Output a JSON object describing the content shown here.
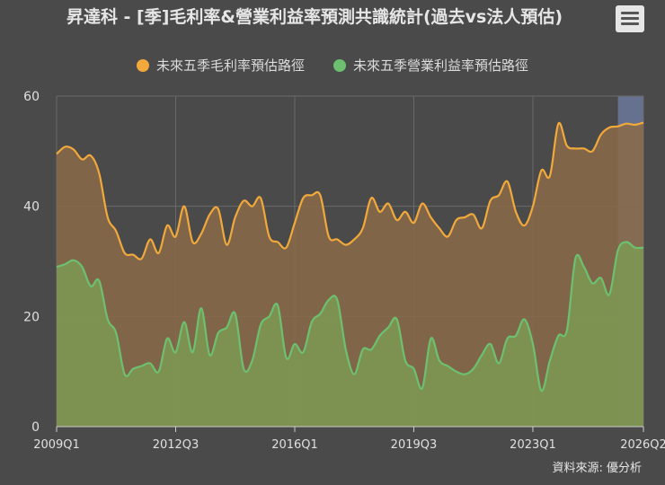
{
  "title": "昇達科 - [季]毛利率&營業利益率預測共識統計(過去vs法人預估)",
  "source": "資料來源: 優分析",
  "menu_icon": "hamburger-menu-icon",
  "colors": {
    "background": "#4a4a4a",
    "gross_line": "#f2a93b",
    "gross_fill": "#8a6a48",
    "op_line": "#6cc070",
    "op_fill": "#7c9a54",
    "forecast_band": "#6f7fa6",
    "grid": "#6a6a6a"
  },
  "chart_data": {
    "type": "area",
    "title": "昇達科 - [季]毛利率&營業利益率預測共識統計(過去vs法人預估)",
    "ylim": [
      0,
      60
    ],
    "yticks": [
      0,
      20,
      40,
      60
    ],
    "xticks": [
      "2009Q1",
      "2012Q3",
      "2016Q1",
      "2019Q3",
      "2023Q1",
      "2026Q2"
    ],
    "forecast_start": "2025Q3",
    "legend_position": "top",
    "grid": true,
    "x": [
      "2009Q1",
      "2009Q2",
      "2009Q3",
      "2009Q4",
      "2010Q1",
      "2010Q2",
      "2010Q3",
      "2010Q4",
      "2011Q1",
      "2011Q2",
      "2011Q3",
      "2011Q4",
      "2012Q1",
      "2012Q2",
      "2012Q3",
      "2012Q4",
      "2013Q1",
      "2013Q2",
      "2013Q3",
      "2013Q4",
      "2014Q1",
      "2014Q2",
      "2014Q3",
      "2014Q4",
      "2015Q1",
      "2015Q2",
      "2015Q3",
      "2015Q4",
      "2016Q1",
      "2016Q2",
      "2016Q3",
      "2016Q4",
      "2017Q1",
      "2017Q2",
      "2017Q3",
      "2017Q4",
      "2018Q1",
      "2018Q2",
      "2018Q3",
      "2018Q4",
      "2019Q1",
      "2019Q2",
      "2019Q3",
      "2019Q4",
      "2020Q1",
      "2020Q2",
      "2020Q3",
      "2020Q4",
      "2021Q1",
      "2021Q2",
      "2021Q3",
      "2021Q4",
      "2022Q1",
      "2022Q2",
      "2022Q3",
      "2022Q4",
      "2023Q1",
      "2023Q2",
      "2023Q3",
      "2023Q4",
      "2024Q1",
      "2024Q2",
      "2024Q3",
      "2024Q4",
      "2025Q1",
      "2025Q2",
      "2025Q3",
      "2025Q4",
      "2026Q1",
      "2026Q2"
    ],
    "series": [
      {
        "name": "未來五季毛利率預估路徑",
        "color": "#f2a93b",
        "values": [
          49.5,
          50.8,
          50.3,
          48.5,
          49.2,
          46,
          38,
          35.5,
          31.5,
          31.2,
          30.5,
          34,
          31.5,
          36.5,
          34.5,
          40,
          33.5,
          35,
          38.5,
          39.5,
          33,
          38,
          41,
          40,
          41.5,
          34.5,
          33.5,
          32.5,
          37,
          41.5,
          42,
          42,
          34.5,
          34,
          33,
          34,
          36,
          41.5,
          39,
          40.5,
          37.5,
          39,
          37,
          40.5,
          38,
          36,
          34.5,
          37.5,
          38,
          38.5,
          36,
          41,
          42,
          44.5,
          39,
          36.5,
          40,
          46.5,
          45.5,
          55,
          51,
          50.5,
          50.5,
          50,
          53,
          54.3,
          54.5,
          55,
          54.8,
          55.2
        ]
      },
      {
        "name": "未來五季營業利益率預估路徑",
        "color": "#6cc070",
        "values": [
          29,
          29.5,
          30.2,
          29,
          25.5,
          26.5,
          19.5,
          17,
          9.5,
          10.5,
          11,
          11.5,
          10,
          16,
          13.5,
          19,
          13.5,
          21.5,
          13,
          17,
          18,
          20.5,
          10.5,
          12,
          18.5,
          20,
          22,
          12.5,
          15,
          13.5,
          19,
          20.5,
          23,
          23,
          14,
          9.5,
          14,
          14,
          16.5,
          18,
          19.5,
          12,
          10.5,
          7,
          16,
          12,
          11,
          10,
          9.5,
          10.5,
          13,
          15,
          11.5,
          16,
          16.5,
          19.5,
          15,
          6.5,
          12,
          16.5,
          17.5,
          30.5,
          29,
          26,
          27,
          24,
          32,
          33.5,
          32.5,
          32.5
        ]
      }
    ]
  }
}
